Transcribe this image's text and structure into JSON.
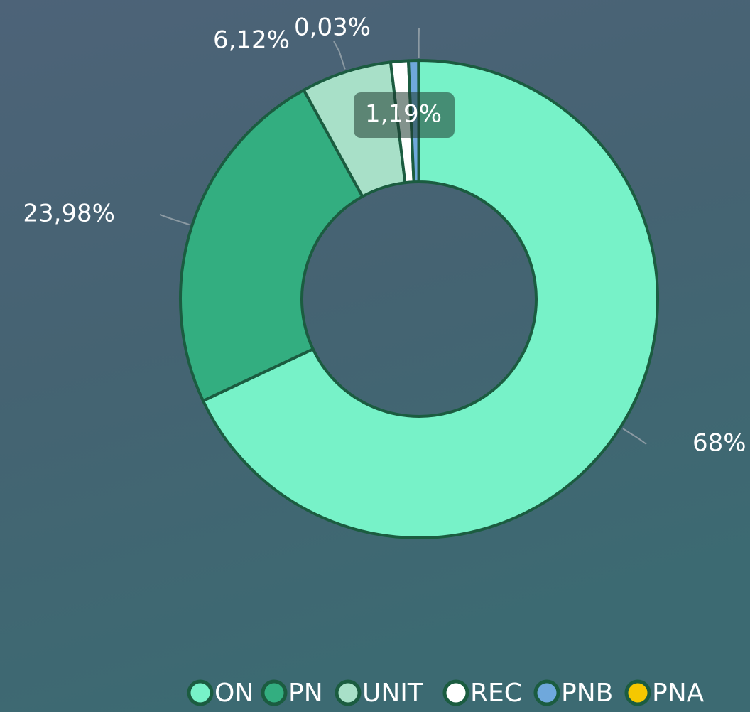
{
  "chart_data": {
    "type": "donut",
    "categories": [
      "ON",
      "PN",
      "UNIT",
      "REC",
      "PNB",
      "PNA"
    ],
    "values": [
      68,
      23.98,
      6.12,
      1.19,
      0.68,
      0.03
    ],
    "value_labels": [
      "68%",
      "23,98%",
      "6,12%",
      "1,19%",
      null,
      "0,03%"
    ],
    "colors": [
      "#77f2c8",
      "#33ae80",
      "#a8e0c8",
      "#ffffff",
      "#6fa8dc",
      "#f5c800"
    ],
    "legend": "bottom"
  }
}
